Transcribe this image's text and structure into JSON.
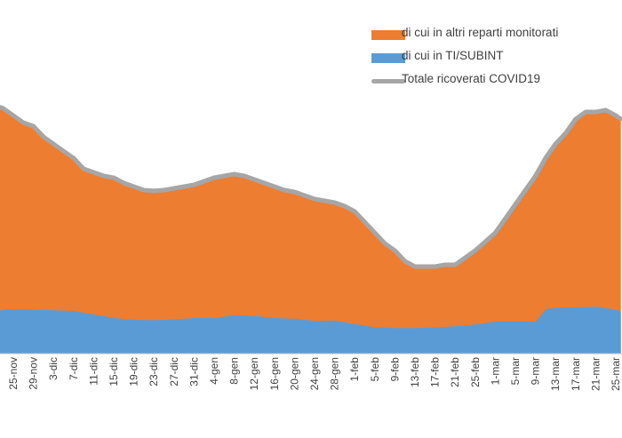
{
  "chart_data": {
    "type": "area",
    "title": "",
    "xlabel": "",
    "ylabel": "",
    "x_tick_labels": [
      "25-nov",
      "29-nov",
      "3-dic",
      "7-dic",
      "11-dic",
      "15-dic",
      "19-dic",
      "23-dic",
      "27-dic",
      "31-dic",
      "4-gen",
      "8-gen",
      "12-gen",
      "16-gen",
      "20-gen",
      "24-gen",
      "28-gen",
      "1-feb",
      "5-feb",
      "9-feb",
      "13-feb",
      "17-feb",
      "21-feb",
      "25-feb",
      "1-mar",
      "5-mar",
      "9-mar",
      "13-mar",
      "17-mar",
      "21-mar",
      "25-mar"
    ],
    "x_tick_index": [
      0,
      4,
      8,
      12,
      16,
      20,
      24,
      28,
      32,
      36,
      40,
      44,
      48,
      52,
      56,
      60,
      64,
      68,
      72,
      76,
      80,
      84,
      88,
      92,
      96,
      100,
      104,
      108,
      112,
      116,
      120
    ],
    "day_range": [
      -4,
      121
    ],
    "y_range": [
      0,
      100
    ],
    "grid": false,
    "legend_position": "top-right",
    "colors": {
      "ti_subint": "#5b9bd5",
      "altri_reparti": "#ed7d31",
      "totale": "#a6a6a6"
    },
    "series": [
      {
        "name": "di cui in altri reparti monitorati",
        "kind": "stacked-area"
      },
      {
        "name": "di cui in TI/SUBINT",
        "kind": "area",
        "x": [
          -4,
          -1,
          4,
          8,
          12,
          16,
          20,
          24,
          28,
          32,
          36,
          40,
          44,
          48,
          52,
          56,
          60,
          64,
          68,
          72,
          76,
          80,
          84,
          88,
          92,
          96,
          100,
          104,
          106,
          108,
          112,
          116,
          118,
          121
        ],
        "values": [
          12,
          12.5,
          12.4,
          12.2,
          12,
          11,
          10,
          9.5,
          9.4,
          9.6,
          10,
          10,
          10.8,
          10.6,
          10,
          9.8,
          9.2,
          9.3,
          8.3,
          7.4,
          7.2,
          7.2,
          7.3,
          7.7,
          8.2,
          9,
          9,
          9,
          12.5,
          12.9,
          13,
          13.2,
          12.8,
          12
        ]
      },
      {
        "name": "Totale ricoverati COVID19",
        "kind": "line",
        "x": [
          -4,
          -2,
          0,
          2,
          4,
          6,
          8,
          10,
          12,
          14,
          16,
          18,
          20,
          22,
          24,
          26,
          28,
          30,
          32,
          34,
          36,
          38,
          40,
          42,
          44,
          46,
          48,
          50,
          52,
          54,
          56,
          58,
          60,
          62,
          64,
          66,
          68,
          70,
          72,
          74,
          76,
          78,
          80,
          82,
          84,
          86,
          88,
          90,
          92,
          94,
          96,
          98,
          100,
          102,
          104,
          106,
          108,
          110,
          112,
          114,
          116,
          118,
          120,
          121
        ],
        "values": [
          70,
          69,
          67,
          65,
          64,
          61,
          59,
          57,
          55,
          52,
          51,
          50,
          49.5,
          48,
          47,
          46,
          45.8,
          46,
          46.5,
          47,
          47.5,
          48.5,
          49.5,
          50,
          50.5,
          50,
          49,
          48,
          47,
          46,
          45.5,
          44.5,
          43.5,
          43,
          42.5,
          41.5,
          40,
          37,
          34,
          31,
          29,
          26,
          24.5,
          24.5,
          24.5,
          25,
          25,
          27,
          29,
          31.5,
          34,
          38,
          42,
          46,
          50,
          55,
          59,
          62,
          66,
          68,
          68,
          68.5,
          67,
          66
        ]
      }
    ]
  },
  "legend": {
    "altri_reparti": "di cui in altri reparti monitorati",
    "ti_subint": "di cui in TI/SUBINT",
    "totale": "Totale ricoverati COVID19"
  }
}
